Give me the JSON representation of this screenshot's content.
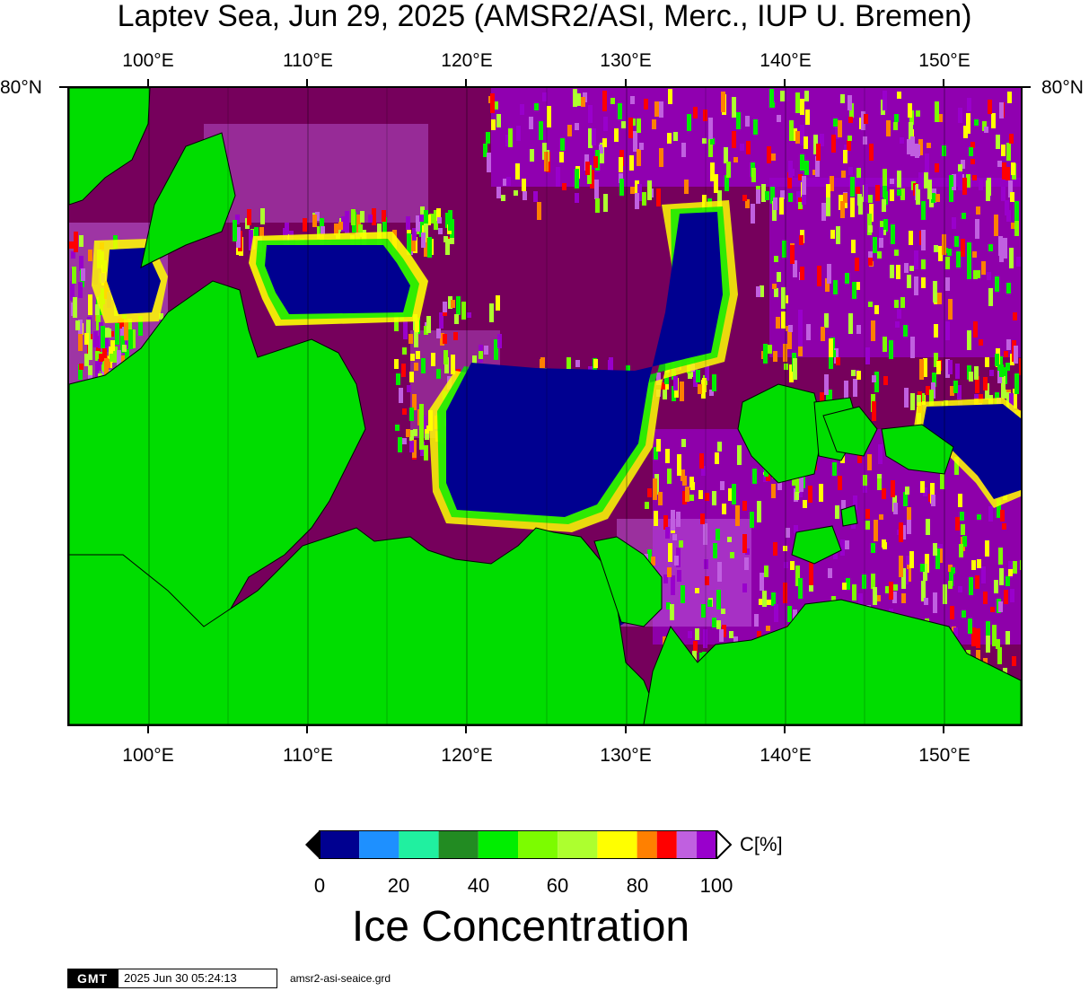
{
  "title": "Laptev Sea, Jun 29, 2025 (AMSR2/ASI, Merc., IUP U. Bremen)",
  "map": {
    "projection": "Mercator",
    "lon_range": [
      95,
      155
    ],
    "lat_top_label": "80°N",
    "lon_ticks": [
      "100°E",
      "110°E",
      "120°E",
      "130°E",
      "140°E",
      "150°E"
    ],
    "lon_tick_values": [
      100,
      110,
      120,
      130,
      140,
      150
    ],
    "land_color": "#00dd00",
    "gridline_color": "#000000"
  },
  "colorbar": {
    "unit": "C[%]",
    "labels": [
      "0",
      "20",
      "40",
      "60",
      "80",
      "100"
    ],
    "colors": [
      "#000090",
      "#1e90ff",
      "#20f0a0",
      "#228b22",
      "#00ee00",
      "#7cfc00",
      "#adff2f",
      "#ffff00",
      "#ff8000",
      "#ff0000",
      "#c060e0",
      "#9900cc"
    ],
    "over_color": "#ffffff",
    "under_color": "#000000"
  },
  "variable_label": "Ice Concentration",
  "footer": {
    "logo": "GMT",
    "timestamp": "2025 Jun 30 05:24:13",
    "filename": "amsr2-asi-seaice.grd"
  }
}
